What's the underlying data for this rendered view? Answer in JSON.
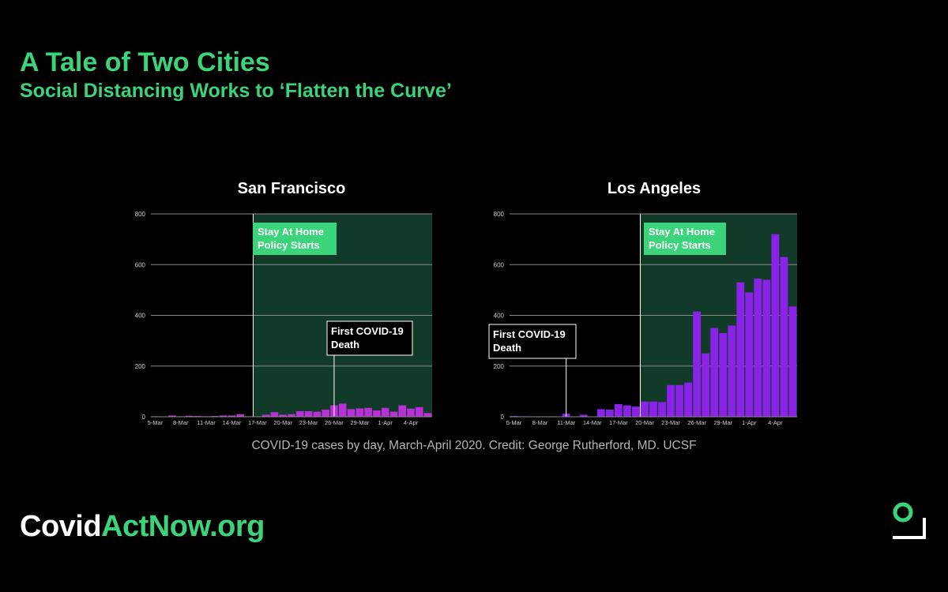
{
  "header": {
    "title": "A Tale of Two Cities",
    "subtitle": "Social Distancing Works to ‘Flatten the Curve’"
  },
  "caption": "COVID-19 cases by day, March-April 2020. Credit: George Rutherford, MD. UCSF",
  "brand": {
    "part1": "Covid",
    "part2": "ActNow.org"
  },
  "colors": {
    "brand_green": "#3bd47a",
    "policy_region": "#123a28",
    "sf_bars": "#b92fd8",
    "la_bars": "#8a22e8",
    "policy_label_bg": "#3bd47a",
    "caption": "#b5b5b5"
  },
  "icons": [
    "covidactnow-logo-icon"
  ],
  "chart_data": [
    {
      "type": "bar",
      "title": "San Francisco",
      "xlabel": "",
      "ylabel": "",
      "ylim": [
        0,
        800
      ],
      "yticks": [
        "0",
        "200",
        "400",
        "600",
        "800"
      ],
      "grid": true,
      "categories": [
        "5-Mar",
        "6-Mar",
        "7-Mar",
        "8-Mar",
        "9-Mar",
        "10-Mar",
        "11-Mar",
        "12-Mar",
        "13-Mar",
        "14-Mar",
        "15-Mar",
        "16-Mar",
        "17-Mar",
        "18-Mar",
        "19-Mar",
        "20-Mar",
        "21-Mar",
        "22-Mar",
        "23-Mar",
        "24-Mar",
        "25-Mar",
        "26-Mar",
        "27-Mar",
        "28-Mar",
        "29-Mar",
        "30-Mar",
        "31-Mar",
        "1-Apr",
        "2-Apr",
        "3-Apr",
        "4-Apr",
        "5-Apr",
        "6-Apr"
      ],
      "xtick_labels": [
        "5-Mar",
        "8-Mar",
        "11-Mar",
        "14-Mar",
        "17-Mar",
        "20-Mar",
        "23-Mar",
        "26-Mar",
        "29-Mar",
        "1-Apr",
        "4-Apr"
      ],
      "values": [
        2,
        1,
        5,
        2,
        4,
        3,
        2,
        3,
        5,
        5,
        10,
        2,
        0,
        8,
        18,
        8,
        10,
        22,
        22,
        20,
        28,
        45,
        52,
        30,
        33,
        35,
        25,
        35,
        20,
        45,
        32,
        38,
        15
      ],
      "annotations": [
        {
          "type": "region",
          "start": "17-Mar",
          "label": [
            "Stay At Home",
            "Policy Starts"
          ]
        },
        {
          "type": "line",
          "at": "26-Mar",
          "label": [
            "First COVID-19",
            "Death"
          ]
        }
      ]
    },
    {
      "type": "bar",
      "title": "Los Angeles",
      "xlabel": "",
      "ylabel": "",
      "ylim": [
        0,
        800
      ],
      "yticks": [
        "0",
        "200",
        "400",
        "600",
        "800"
      ],
      "grid": true,
      "categories": [
        "5-Mar",
        "6-Mar",
        "7-Mar",
        "8-Mar",
        "9-Mar",
        "10-Mar",
        "11-Mar",
        "12-Mar",
        "13-Mar",
        "14-Mar",
        "15-Mar",
        "16-Mar",
        "17-Mar",
        "18-Mar",
        "19-Mar",
        "20-Mar",
        "21-Mar",
        "22-Mar",
        "23-Mar",
        "24-Mar",
        "25-Mar",
        "26-Mar",
        "27-Mar",
        "28-Mar",
        "29-Mar",
        "30-Mar",
        "31-Mar",
        "1-Apr",
        "2-Apr",
        "3-Apr",
        "4-Apr",
        "5-Apr",
        "6-Apr"
      ],
      "xtick_labels": [
        "5-Mar",
        "8-Mar",
        "11-Mar",
        "14-Mar",
        "17-Mar",
        "20-Mar",
        "23-Mar",
        "26-Mar",
        "29-Mar",
        "1-Apr",
        "4-Apr"
      ],
      "values": [
        3,
        2,
        1,
        1,
        1,
        1,
        12,
        0,
        8,
        0,
        30,
        28,
        50,
        45,
        40,
        60,
        60,
        58,
        125,
        125,
        135,
        415,
        250,
        350,
        330,
        360,
        530,
        490,
        545,
        540,
        720,
        630,
        435
      ],
      "annotations": [
        {
          "type": "region",
          "start": "20-Mar",
          "label": [
            "Stay At Home",
            "Policy Starts"
          ]
        },
        {
          "type": "line",
          "at": "11-Mar",
          "label": [
            "First COVID-19",
            "Death"
          ]
        }
      ]
    }
  ]
}
